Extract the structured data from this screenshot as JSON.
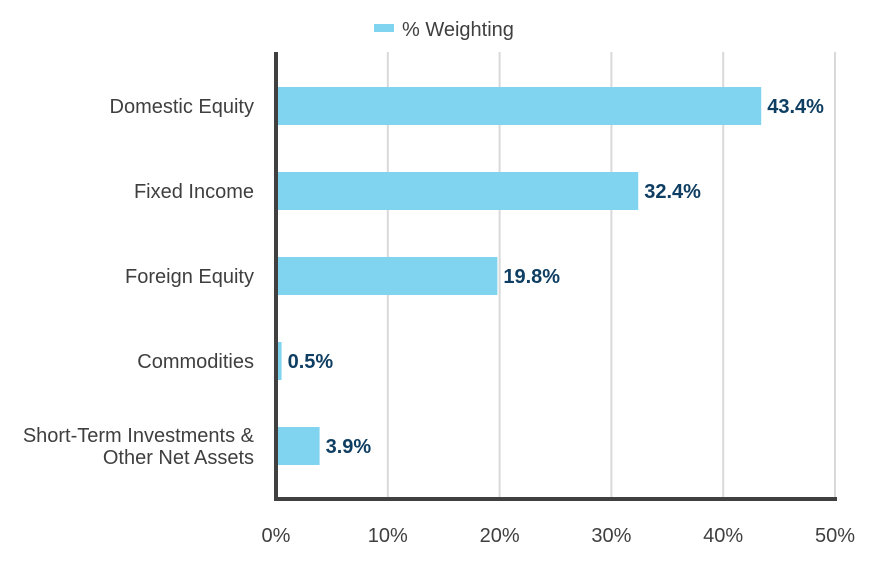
{
  "chart_data": {
    "type": "bar",
    "orientation": "horizontal",
    "categories": [
      [
        "Domestic Equity"
      ],
      [
        "Fixed Income"
      ],
      [
        "Foreign Equity"
      ],
      [
        "Commodities"
      ],
      [
        "Short-Term Investments &",
        "Other Net Assets"
      ]
    ],
    "series": [
      {
        "name": "% Weighting",
        "values": [
          43.4,
          32.4,
          19.8,
          0.5,
          3.9
        ],
        "data_labels": [
          "43.4%",
          "32.4%",
          "19.8%",
          "0.5%",
          "3.9%"
        ]
      }
    ],
    "xlim": [
      0,
      50
    ],
    "x_ticks": [
      0,
      10,
      20,
      30,
      40,
      50
    ],
    "x_tick_labels": [
      "0%",
      "10%",
      "20%",
      "30%",
      "40%",
      "50%"
    ],
    "grid": true,
    "legend_position": "top-center",
    "colors": {
      "bar": "#81d4f0",
      "data_label": "#0f3e63",
      "axis": "#404040",
      "grid": "#d9d9d9",
      "text": "#3f3f3f"
    }
  }
}
